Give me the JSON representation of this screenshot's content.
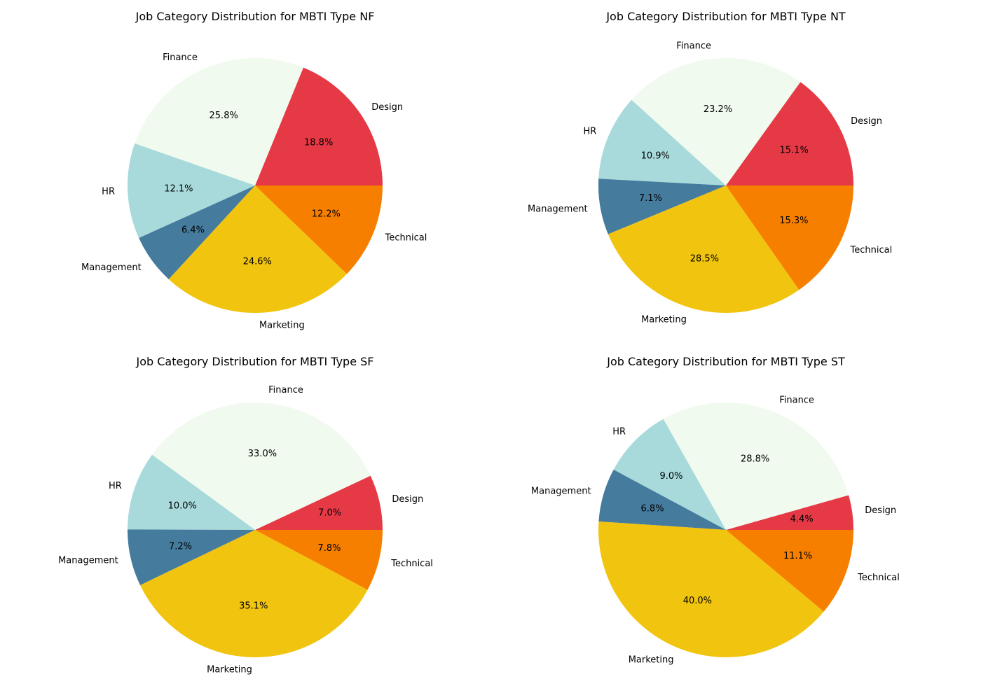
{
  "colors": {
    "Design": "#e63946",
    "Finance": "#f1faee",
    "HR": "#a8dadc",
    "Management": "#457b9d",
    "Marketing": "#f1c40f",
    "Technical": "#f77f00"
  },
  "chart_data": [
    {
      "type": "pie",
      "title": "Job Category Distribution for MBTI Type NF",
      "start_angle": 0,
      "direction": "counterclockwise",
      "labels": [
        "Design",
        "Finance",
        "HR",
        "Management",
        "Marketing",
        "Technical"
      ],
      "values": [
        18.8,
        25.8,
        12.1,
        6.4,
        24.6,
        12.2
      ],
      "value_labels": [
        "18.8%",
        "25.8%",
        "12.1%",
        "6.4%",
        "24.6%",
        "12.2%"
      ]
    },
    {
      "type": "pie",
      "title": "Job Category Distribution for MBTI Type NT",
      "start_angle": 0,
      "direction": "counterclockwise",
      "labels": [
        "Design",
        "Finance",
        "HR",
        "Management",
        "Marketing",
        "Technical"
      ],
      "values": [
        15.1,
        23.2,
        10.9,
        7.1,
        28.5,
        15.3
      ],
      "value_labels": [
        "15.1%",
        "23.2%",
        "10.9%",
        "7.1%",
        "28.5%",
        "15.3%"
      ]
    },
    {
      "type": "pie",
      "title": "Job Category Distribution for MBTI Type SF",
      "start_angle": 0,
      "direction": "counterclockwise",
      "labels": [
        "Design",
        "Finance",
        "HR",
        "Management",
        "Marketing",
        "Technical"
      ],
      "values": [
        7.0,
        33.0,
        10.0,
        7.2,
        35.1,
        7.8
      ],
      "value_labels": [
        "7.0%",
        "33.0%",
        "10.0%",
        "7.2%",
        "35.1%",
        "7.8%"
      ]
    },
    {
      "type": "pie",
      "title": "Job Category Distribution for MBTI Type ST",
      "start_angle": 0,
      "direction": "counterclockwise",
      "labels": [
        "Design",
        "Finance",
        "HR",
        "Management",
        "Marketing",
        "Technical"
      ],
      "values": [
        4.4,
        28.8,
        9.0,
        6.8,
        40.0,
        11.1
      ],
      "value_labels": [
        "4.4%",
        "28.8%",
        "9.0%",
        "6.8%",
        "40.0%",
        "11.1%"
      ]
    }
  ]
}
